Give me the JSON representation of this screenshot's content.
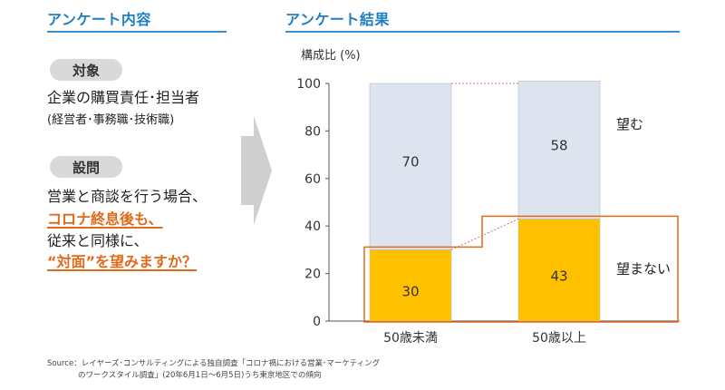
{
  "left_panel": {
    "title": "アンケート内容",
    "target_badge": "対象",
    "target_line1": "企業の購買責任･担当者",
    "target_line2": "(経営者･事務職･技術職)",
    "question_badge": "設問",
    "question_line1": "営業と商談を行う場合、",
    "question_line2": "コロナ終息後も、",
    "question_line3": "従来と同様に、",
    "question_line4": "“対面”を望みますか？"
  },
  "right_panel": {
    "title": "アンケート結果"
  },
  "colors": {
    "accent_blue": "#1f7fc4",
    "accent_orange": "#e26a1a",
    "want_bar": "#dde3ef",
    "not_want_bar": "#ffc000"
  },
  "chart_data": {
    "type": "bar",
    "stacked": true,
    "ylabel": "構成比 (%)",
    "ylim": [
      0,
      100
    ],
    "yticks": [
      "0",
      "20",
      "40",
      "60",
      "80",
      "100"
    ],
    "categories": [
      "50歳未満",
      "50歳以上"
    ],
    "series": [
      {
        "name": "望まない",
        "values": [
          30,
          43
        ]
      },
      {
        "name": "望む",
        "values": [
          70,
          58
        ]
      }
    ],
    "legend_placement": "right"
  },
  "source": {
    "line1": "Source：レイヤーズ･コンサルティングによる独自調査「コロナ禍における営業･マーケティング",
    "line2": "のワークスタイル調査」(20年6月1日～6月5日)うち東京地区での傾向"
  }
}
